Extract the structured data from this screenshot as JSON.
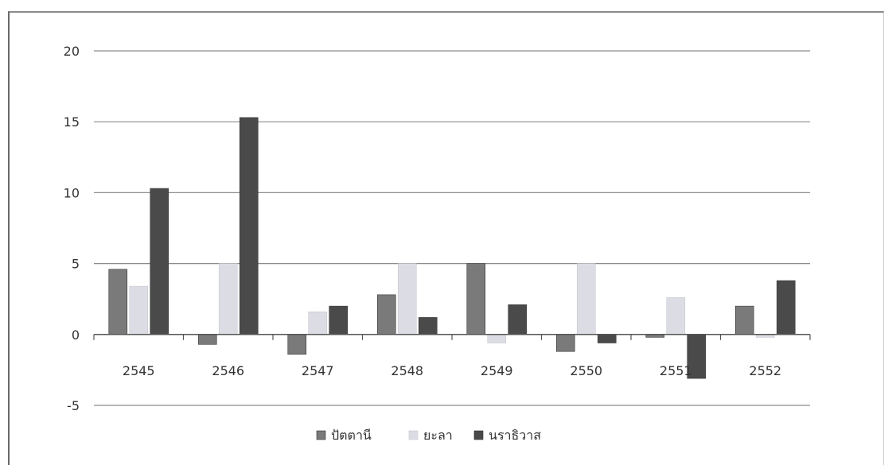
{
  "chart_data": {
    "type": "bar",
    "title": "",
    "xlabel": "",
    "ylabel": "",
    "categories": [
      "2545",
      "2546",
      "2547",
      "2548",
      "2549",
      "2550",
      "2551",
      "2552"
    ],
    "series": [
      {
        "name": "ปัตตานี",
        "color": "#7a7a7a",
        "values": [
          4.6,
          -0.7,
          -1.4,
          2.8,
          5.0,
          -1.2,
          -0.2,
          2.0
        ]
      },
      {
        "name": "ยะลา",
        "color": "#dcdce4",
        "values": [
          3.4,
          5.0,
          1.6,
          5.0,
          -0.6,
          5.0,
          2.6,
          -0.2
        ]
      },
      {
        "name": "นราธิวาส",
        "color": "#4a4a4a",
        "values": [
          10.3,
          15.3,
          2.0,
          1.2,
          2.1,
          -0.6,
          -3.1,
          3.8
        ]
      }
    ],
    "ylim": [
      -5,
      20
    ],
    "yticks": [
      -5,
      0,
      5,
      10,
      15,
      20
    ],
    "grid": true,
    "legend": "bottom"
  }
}
